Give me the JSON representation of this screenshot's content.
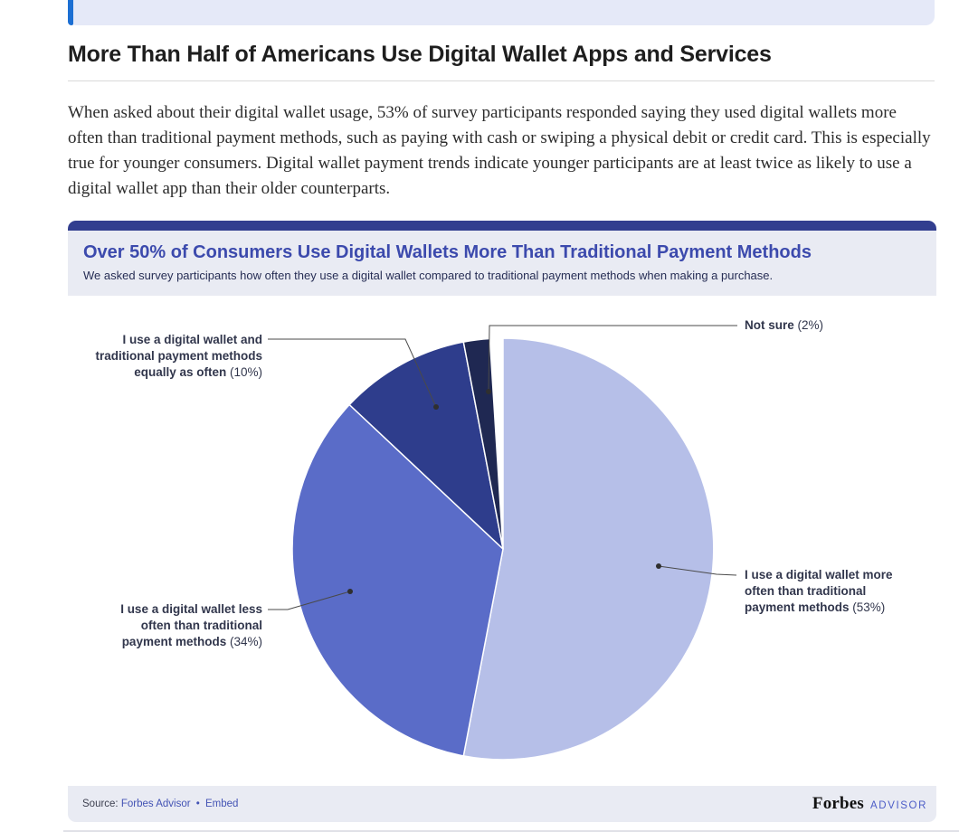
{
  "article": {
    "heading": "More Than Half of Americans Use Digital Wallet Apps and Services",
    "paragraph": "When asked about their digital wallet usage, 53% of survey participants responded saying they used digital wallets more often than traditional payment methods, such as paying with cash or swiping a physical debit or credit card. This is especially true for younger consumers. Digital wallet payment trends indicate younger participants are at least twice as likely to use a digital wallet app than their older counterparts."
  },
  "chart_card": {
    "title": "Over 50% of Consumers Use Digital Wallets More Than Traditional Payment Methods",
    "subtitle": "We asked survey participants how often they use a digital wallet compared to traditional payment methods when making a purchase.",
    "footer": {
      "source_prefix": "Source:",
      "source_link": "Forbes Advisor",
      "separator": "•",
      "embed_link": "Embed",
      "brand": "Forbes",
      "brand_suffix": "ADVISOR"
    },
    "colors": {
      "top_bar": "#323E8F",
      "header_bg": "#E9EBF3",
      "title": "#3C4AAD",
      "callout_accent": "#1C6FD3"
    }
  },
  "chart_data": {
    "type": "pie",
    "title": "Over 50% of Consumers Use Digital Wallets More Than Traditional Payment Methods",
    "subtitle": "We asked survey participants how often they use a digital wallet compared to traditional payment methods when making a purchase.",
    "start_angle_deg": 0,
    "direction": "clockwise",
    "legend_position": "outside-callout-labels",
    "slices": [
      {
        "label": "I use a digital wallet more often than traditional payment methods",
        "label_lines": [
          "I use a digital wallet more",
          "often than traditional",
          "payment methods"
        ],
        "pct_text": "(53%)",
        "value": 53,
        "color": "#B6BFE8"
      },
      {
        "label": "I use a digital wallet less often than traditional payment methods",
        "label_lines": [
          "I use a digital wallet less",
          "often than traditional",
          "payment methods"
        ],
        "pct_text": "(34%)",
        "value": 34,
        "color": "#5A6CC8"
      },
      {
        "label": "I use a digital wallet and traditional payment methods equally as often",
        "label_lines": [
          "I use a digital wallet and",
          "traditional payment methods",
          "equally as often"
        ],
        "pct_text": "(10%)",
        "value": 10,
        "color": "#2E3D8C"
      },
      {
        "label": "Not sure",
        "label_lines": [
          "Not sure"
        ],
        "pct_text": "(2%)",
        "value": 2,
        "color": "#1F2852"
      }
    ]
  }
}
